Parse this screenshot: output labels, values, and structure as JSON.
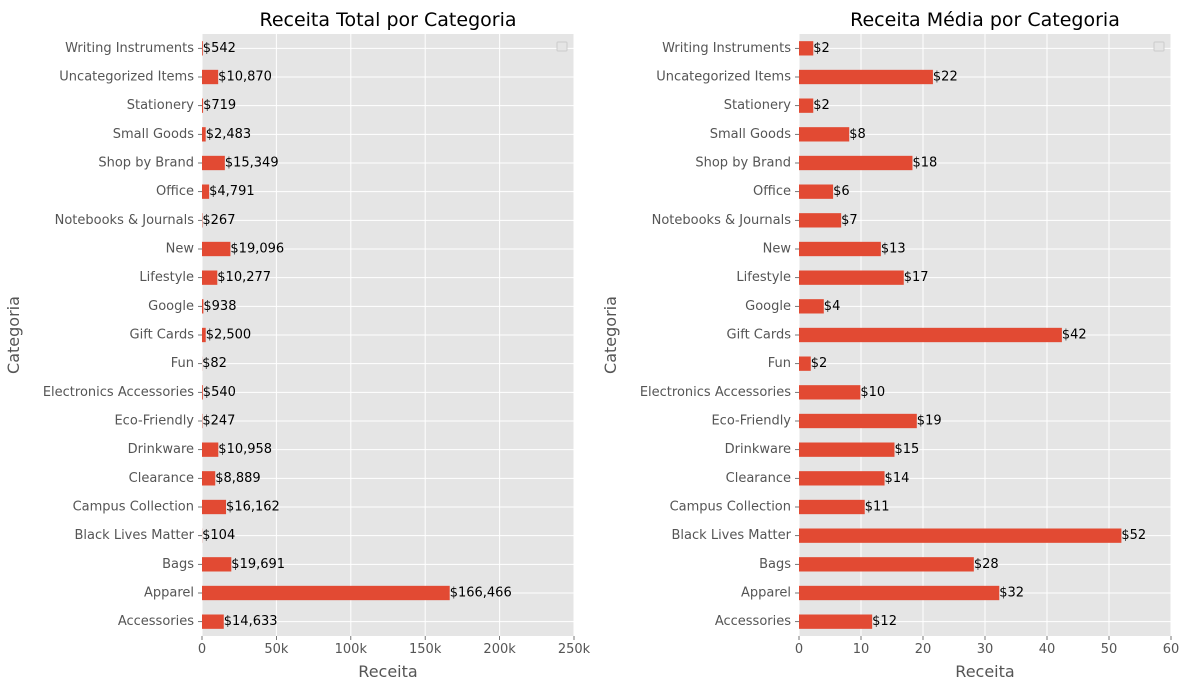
{
  "chart_data": [
    {
      "type": "bar",
      "orientation": "horizontal",
      "title": "Receita Total por Categoria",
      "xlabel": "Receita",
      "ylabel": "Categoria",
      "xlim": [
        0,
        250000
      ],
      "xticks": [
        0,
        50000,
        100000,
        150000,
        200000,
        250000
      ],
      "xtick_labels": [
        "0",
        "50k",
        "100k",
        "150k",
        "200k",
        "250k"
      ],
      "grid": true,
      "legend": "top-right (empty)",
      "categories": [
        "Accessories",
        "Apparel",
        "Bags",
        "Black Lives Matter",
        "Campus Collection",
        "Clearance",
        "Drinkware",
        "Eco-Friendly",
        "Electronics Accessories",
        "Fun",
        "Gift Cards",
        "Google",
        "Lifestyle",
        "New",
        "Notebooks & Journals",
        "Office",
        "Shop by Brand",
        "Small Goods",
        "Stationery",
        "Uncategorized Items",
        "Writing Instruments"
      ],
      "values": [
        14633,
        166466,
        19691,
        104,
        16162,
        8889,
        10958,
        247,
        540,
        82,
        2500,
        938,
        10277,
        19096,
        267,
        4791,
        15349,
        2483,
        719,
        10870,
        542
      ],
      "data_labels": [
        "$14,633",
        "$166,466",
        "$19,691",
        "$104",
        "$16,162",
        "$8,889",
        "$10,958",
        "$247",
        "$540",
        "$82",
        "$2,500",
        "$938",
        "$10,277",
        "$19,096",
        "$267",
        "$4,791",
        "$15,349",
        "$2,483",
        "$719",
        "$10,870",
        "$542"
      ]
    },
    {
      "type": "bar",
      "orientation": "horizontal",
      "title": "Receita Média por Categoria",
      "xlabel": "Receita",
      "ylabel": "Categoria",
      "xlim": [
        0,
        60
      ],
      "xticks": [
        0,
        10,
        20,
        30,
        40,
        50,
        60
      ],
      "xtick_labels": [
        "0",
        "10",
        "20",
        "30",
        "40",
        "50",
        "60"
      ],
      "grid": true,
      "legend": "top-right (empty)",
      "categories": [
        "Accessories",
        "Apparel",
        "Bags",
        "Black Lives Matter",
        "Campus Collection",
        "Clearance",
        "Drinkware",
        "Eco-Friendly",
        "Electronics Accessories",
        "Fun",
        "Gift Cards",
        "Google",
        "Lifestyle",
        "New",
        "Notebooks & Journals",
        "Office",
        "Shop by Brand",
        "Small Goods",
        "Stationery",
        "Uncategorized Items",
        "Writing Instruments"
      ],
      "values": [
        11.8,
        32.3,
        28.2,
        52.0,
        10.6,
        13.8,
        15.4,
        19.0,
        9.9,
        1.9,
        42.4,
        4.0,
        16.9,
        13.2,
        6.8,
        5.5,
        18.3,
        8.1,
        2.3,
        21.6,
        2.3
      ],
      "data_labels": [
        "$12",
        "$32",
        "$28",
        "$52",
        "$11",
        "$14",
        "$15",
        "$19",
        "$10",
        "$2",
        "$42",
        "$4",
        "$17",
        "$13",
        "$7",
        "$6",
        "$18",
        "$8",
        "$2",
        "$22",
        "$2"
      ]
    }
  ],
  "colors": {
    "bar": "#E24A33",
    "plot_background": "#E5E5E5",
    "grid": "#FFFFFF",
    "tick_text": "#555555",
    "label_text": "#555555",
    "title_text": "#000000",
    "data_label_text": "#000000"
  }
}
